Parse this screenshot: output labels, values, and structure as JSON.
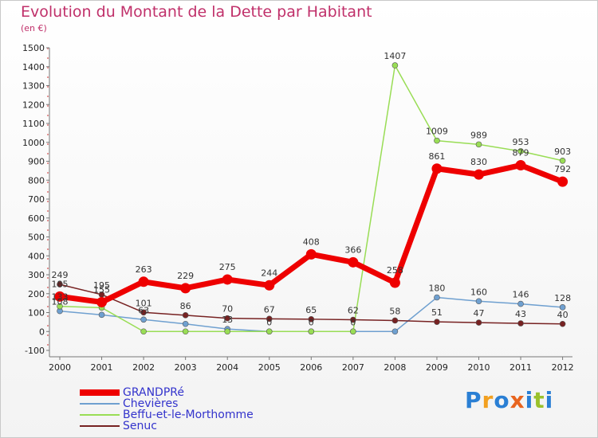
{
  "title": "Evolution du Montant de la Dette par Habitant",
  "subtitle": "(en €)",
  "logo": {
    "text": "Proxiti",
    "colors": [
      "#2a7fd4",
      "#f2a020",
      "#2a7fd4",
      "#e8641e",
      "#2a7fd4",
      "#9ac12c",
      "#2a7fd4"
    ]
  },
  "chart_data": {
    "type": "line",
    "x": [
      "2000",
      "2001",
      "2002",
      "2003",
      "2004",
      "2005",
      "2006",
      "2007",
      "2008",
      "2009",
      "2010",
      "2011",
      "2012"
    ],
    "ylim": [
      -100,
      1500
    ],
    "yticks": [
      "-100",
      "0",
      "100",
      "200",
      "300",
      "400",
      "500",
      "600",
      "700",
      "800",
      "900",
      "1000",
      "1100",
      "1200",
      "1300",
      "1400",
      "1500"
    ],
    "grid": false,
    "legend_position": "bottom-left",
    "series": [
      {
        "name": "Chevières",
        "color": "#6fa0d0",
        "values": [
          108,
          88,
          63,
          40,
          13,
          0,
          0,
          0,
          0,
          180,
          160,
          146,
          128
        ],
        "labels": [
          "108",
          "",
          "63",
          "",
          "13",
          "0",
          "0",
          "0",
          "",
          "180",
          "160",
          "146",
          "128"
        ]
      },
      {
        "name": "Beffu-et-le-Morthomme",
        "color": "#99dd55",
        "values": [
          133,
          126,
          0,
          0,
          0,
          0,
          0,
          0,
          1407,
          1009,
          989,
          953,
          903
        ],
        "labels": [
          "133",
          "",
          "",
          "",
          "",
          "",
          "",
          "",
          "1407",
          "1009",
          "989",
          "953",
          "903"
        ]
      },
      {
        "name": "Senuc",
        "color": "#772222",
        "values": [
          249,
          195,
          101,
          86,
          70,
          67,
          65,
          62,
          58,
          51,
          47,
          43,
          40
        ],
        "labels": [
          "249",
          "195",
          "101",
          "86",
          "70",
          "67",
          "65",
          "62",
          "58",
          "51",
          "47",
          "43",
          "40"
        ]
      },
      {
        "name": "GRANDPRé",
        "color": "#ee0000",
        "values": [
          185,
          155,
          263,
          229,
          275,
          244,
          408,
          366,
          258,
          861,
          830,
          879,
          792
        ],
        "labels": [
          "185",
          "155",
          "263",
          "229",
          "275",
          "244",
          "408",
          "366",
          "258",
          "861",
          "830",
          "879",
          "792"
        ]
      }
    ]
  },
  "legend": [
    {
      "name": "GRANDPRé",
      "color": "#ee0000"
    },
    {
      "name": "Chevières",
      "color": "#6fa0d0"
    },
    {
      "name": "Beffu-et-le-Morthomme",
      "color": "#99dd55"
    },
    {
      "name": "Senuc",
      "color": "#772222"
    }
  ]
}
